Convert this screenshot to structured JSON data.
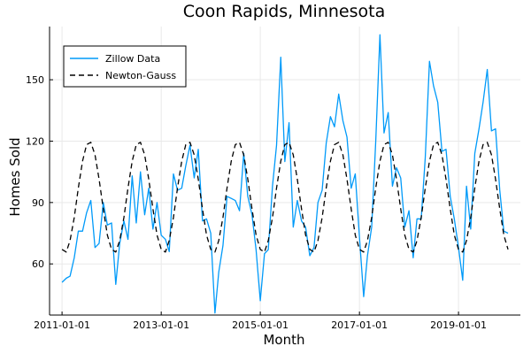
{
  "chart_data": {
    "type": "line",
    "title": "Coon Rapids, Minnesota",
    "xlabel": "Month",
    "ylabel": "Homes Sold",
    "x_ticks": [
      "2011-01-01",
      "2013-01-01",
      "2015-01-01",
      "2017-01-01",
      "2019-01-01"
    ],
    "y_ticks": [
      60,
      90,
      120,
      150
    ],
    "xlim": [
      "2010-10-01",
      "2020-04-01"
    ],
    "ylim": [
      35,
      176
    ],
    "grid": true,
    "legend_position": "top-left",
    "series": [
      {
        "name": "Zillow Data",
        "style": "solid",
        "color": "#009af9",
        "points": [
          [
            "2011-01-01",
            51
          ],
          [
            "2011-02-01",
            53
          ],
          [
            "2011-03-01",
            54
          ],
          [
            "2011-04-01",
            63
          ],
          [
            "2011-05-01",
            76
          ],
          [
            "2011-06-01",
            76
          ],
          [
            "2011-07-01",
            85
          ],
          [
            "2011-08-01",
            91
          ],
          [
            "2011-09-01",
            68
          ],
          [
            "2011-10-01",
            70
          ],
          [
            "2011-11-01",
            90
          ],
          [
            "2011-12-01",
            79
          ],
          [
            "2012-01-01",
            80
          ],
          [
            "2012-02-01",
            50
          ],
          [
            "2012-03-01",
            70
          ],
          [
            "2012-04-01",
            81
          ],
          [
            "2012-05-01",
            72
          ],
          [
            "2012-06-01",
            103
          ],
          [
            "2012-07-01",
            80
          ],
          [
            "2012-08-01",
            105
          ],
          [
            "2012-09-01",
            84
          ],
          [
            "2012-10-01",
            97
          ],
          [
            "2012-11-01",
            77
          ],
          [
            "2012-12-01",
            90
          ],
          [
            "2013-01-01",
            74
          ],
          [
            "2013-02-01",
            72
          ],
          [
            "2013-03-01",
            66
          ],
          [
            "2013-04-01",
            104
          ],
          [
            "2013-05-01",
            96
          ],
          [
            "2013-06-01",
            97
          ],
          [
            "2013-07-01",
            108
          ],
          [
            "2013-08-01",
            118
          ],
          [
            "2013-09-01",
            102
          ],
          [
            "2013-10-01",
            116
          ],
          [
            "2013-11-01",
            81
          ],
          [
            "2013-12-01",
            82
          ],
          [
            "2014-01-01",
            75
          ],
          [
            "2014-02-01",
            36
          ],
          [
            "2014-03-01",
            56
          ],
          [
            "2014-04-01",
            69
          ],
          [
            "2014-05-01",
            93
          ],
          [
            "2014-06-01",
            92
          ],
          [
            "2014-07-01",
            91
          ],
          [
            "2014-08-01",
            86
          ],
          [
            "2014-09-01",
            114
          ],
          [
            "2014-10-01",
            93
          ],
          [
            "2014-11-01",
            84
          ],
          [
            "2014-12-01",
            67
          ],
          [
            "2015-01-01",
            42
          ],
          [
            "2015-02-01",
            65
          ],
          [
            "2015-03-01",
            67
          ],
          [
            "2015-04-01",
            98
          ],
          [
            "2015-05-01",
            118
          ],
          [
            "2015-06-01",
            161
          ],
          [
            "2015-07-01",
            110
          ],
          [
            "2015-08-01",
            129
          ],
          [
            "2015-09-01",
            78
          ],
          [
            "2015-10-01",
            91
          ],
          [
            "2015-11-01",
            81
          ],
          [
            "2015-12-01",
            78
          ],
          [
            "2016-01-01",
            64
          ],
          [
            "2016-02-01",
            68
          ],
          [
            "2016-03-01",
            90
          ],
          [
            "2016-04-01",
            96
          ],
          [
            "2016-05-01",
            119
          ],
          [
            "2016-06-01",
            132
          ],
          [
            "2016-07-01",
            127
          ],
          [
            "2016-08-01",
            143
          ],
          [
            "2016-09-01",
            130
          ],
          [
            "2016-10-01",
            122
          ],
          [
            "2016-11-01",
            97
          ],
          [
            "2016-12-01",
            104
          ],
          [
            "2017-01-01",
            73
          ],
          [
            "2017-02-01",
            44
          ],
          [
            "2017-03-01",
            64
          ],
          [
            "2017-04-01",
            78
          ],
          [
            "2017-05-01",
            120
          ],
          [
            "2017-06-01",
            172
          ],
          [
            "2017-07-01",
            124
          ],
          [
            "2017-08-01",
            134
          ],
          [
            "2017-09-01",
            98
          ],
          [
            "2017-10-01",
            107
          ],
          [
            "2017-11-01",
            102
          ],
          [
            "2017-12-01",
            78
          ],
          [
            "2018-01-01",
            86
          ],
          [
            "2018-02-01",
            63
          ],
          [
            "2018-03-01",
            82
          ],
          [
            "2018-04-01",
            82
          ],
          [
            "2018-05-01",
            112
          ],
          [
            "2018-06-01",
            159
          ],
          [
            "2018-07-01",
            147
          ],
          [
            "2018-08-01",
            139
          ],
          [
            "2018-09-01",
            115
          ],
          [
            "2018-10-01",
            116
          ],
          [
            "2018-11-01",
            93
          ],
          [
            "2018-12-01",
            82
          ],
          [
            "2019-01-01",
            68
          ],
          [
            "2019-02-01",
            52
          ],
          [
            "2019-03-01",
            98
          ],
          [
            "2019-04-01",
            77
          ],
          [
            "2019-05-01",
            114
          ],
          [
            "2019-06-01",
            126
          ],
          [
            "2019-07-01",
            139
          ],
          [
            "2019-08-01",
            155
          ],
          [
            "2019-09-01",
            125
          ],
          [
            "2019-10-01",
            126
          ],
          [
            "2019-11-01",
            96
          ],
          [
            "2019-12-01",
            76
          ],
          [
            "2020-01-01",
            75
          ]
        ]
      },
      {
        "name": "Newton-Gauss",
        "style": "dashed",
        "color": "#000000",
        "points": [
          [
            "2011-01-01",
            67.1
          ],
          [
            "2011-02-01",
            65.8
          ],
          [
            "2011-03-01",
            71.4
          ],
          [
            "2011-04-01",
            82.7
          ],
          [
            "2011-05-01",
            97.1
          ],
          [
            "2011-06-01",
            110.2
          ],
          [
            "2011-07-01",
            118.3
          ],
          [
            "2011-08-01",
            119.4
          ],
          [
            "2011-09-01",
            113.3
          ],
          [
            "2011-10-01",
            101.4
          ],
          [
            "2011-11-01",
            86.9
          ],
          [
            "2011-12-01",
            74.1
          ],
          [
            "2012-01-01",
            67.1
          ],
          [
            "2012-02-01",
            65.8
          ],
          [
            "2012-03-01",
            71.4
          ],
          [
            "2012-04-01",
            82.7
          ],
          [
            "2012-05-01",
            97.1
          ],
          [
            "2012-06-01",
            110.2
          ],
          [
            "2012-07-01",
            118.3
          ],
          [
            "2012-08-01",
            119.4
          ],
          [
            "2012-09-01",
            113.3
          ],
          [
            "2012-10-01",
            101.4
          ],
          [
            "2012-11-01",
            86.9
          ],
          [
            "2012-12-01",
            74.1
          ],
          [
            "2013-01-01",
            67.1
          ],
          [
            "2013-02-01",
            65.8
          ],
          [
            "2013-03-01",
            71.4
          ],
          [
            "2013-04-01",
            82.7
          ],
          [
            "2013-05-01",
            97.1
          ],
          [
            "2013-06-01",
            110.2
          ],
          [
            "2013-07-01",
            118.3
          ],
          [
            "2013-08-01",
            119.4
          ],
          [
            "2013-09-01",
            113.3
          ],
          [
            "2013-10-01",
            101.4
          ],
          [
            "2013-11-01",
            86.9
          ],
          [
            "2013-12-01",
            74.1
          ],
          [
            "2014-01-01",
            67.1
          ],
          [
            "2014-02-01",
            65.8
          ],
          [
            "2014-03-01",
            71.4
          ],
          [
            "2014-04-01",
            82.7
          ],
          [
            "2014-05-01",
            97.1
          ],
          [
            "2014-06-01",
            110.2
          ],
          [
            "2014-07-01",
            118.3
          ],
          [
            "2014-08-01",
            119.4
          ],
          [
            "2014-09-01",
            113.3
          ],
          [
            "2014-10-01",
            101.4
          ],
          [
            "2014-11-01",
            86.9
          ],
          [
            "2014-12-01",
            74.1
          ],
          [
            "2015-01-01",
            67.1
          ],
          [
            "2015-02-01",
            65.8
          ],
          [
            "2015-03-01",
            71.4
          ],
          [
            "2015-04-01",
            82.7
          ],
          [
            "2015-05-01",
            97.1
          ],
          [
            "2015-06-01",
            110.2
          ],
          [
            "2015-07-01",
            118.3
          ],
          [
            "2015-08-01",
            119.4
          ],
          [
            "2015-09-01",
            113.3
          ],
          [
            "2015-10-01",
            101.4
          ],
          [
            "2015-11-01",
            86.9
          ],
          [
            "2015-12-01",
            74.1
          ],
          [
            "2016-01-01",
            67.1
          ],
          [
            "2016-02-01",
            65.8
          ],
          [
            "2016-03-01",
            71.4
          ],
          [
            "2016-04-01",
            82.7
          ],
          [
            "2016-05-01",
            97.1
          ],
          [
            "2016-06-01",
            110.2
          ],
          [
            "2016-07-01",
            118.3
          ],
          [
            "2016-08-01",
            119.4
          ],
          [
            "2016-09-01",
            113.3
          ],
          [
            "2016-10-01",
            101.4
          ],
          [
            "2016-11-01",
            86.9
          ],
          [
            "2016-12-01",
            74.1
          ],
          [
            "2017-01-01",
            67.1
          ],
          [
            "2017-02-01",
            65.8
          ],
          [
            "2017-03-01",
            71.4
          ],
          [
            "2017-04-01",
            82.7
          ],
          [
            "2017-05-01",
            97.1
          ],
          [
            "2017-06-01",
            110.2
          ],
          [
            "2017-07-01",
            118.3
          ],
          [
            "2017-08-01",
            119.4
          ],
          [
            "2017-09-01",
            113.3
          ],
          [
            "2017-10-01",
            101.4
          ],
          [
            "2017-11-01",
            86.9
          ],
          [
            "2017-12-01",
            74.1
          ],
          [
            "2018-01-01",
            67.1
          ],
          [
            "2018-02-01",
            65.8
          ],
          [
            "2018-03-01",
            71.4
          ],
          [
            "2018-04-01",
            82.7
          ],
          [
            "2018-05-01",
            97.1
          ],
          [
            "2018-06-01",
            110.2
          ],
          [
            "2018-07-01",
            118.3
          ],
          [
            "2018-08-01",
            119.4
          ],
          [
            "2018-09-01",
            113.3
          ],
          [
            "2018-10-01",
            101.4
          ],
          [
            "2018-11-01",
            86.9
          ],
          [
            "2018-12-01",
            74.1
          ],
          [
            "2019-01-01",
            67.1
          ],
          [
            "2019-02-01",
            65.8
          ],
          [
            "2019-03-01",
            71.4
          ],
          [
            "2019-04-01",
            82.7
          ],
          [
            "2019-05-01",
            97.1
          ],
          [
            "2019-06-01",
            110.2
          ],
          [
            "2019-07-01",
            118.3
          ],
          [
            "2019-08-01",
            119.4
          ],
          [
            "2019-09-01",
            113.3
          ],
          [
            "2019-10-01",
            101.4
          ],
          [
            "2019-11-01",
            86.9
          ],
          [
            "2019-12-01",
            74.1
          ],
          [
            "2020-01-01",
            67.1
          ]
        ]
      }
    ]
  }
}
